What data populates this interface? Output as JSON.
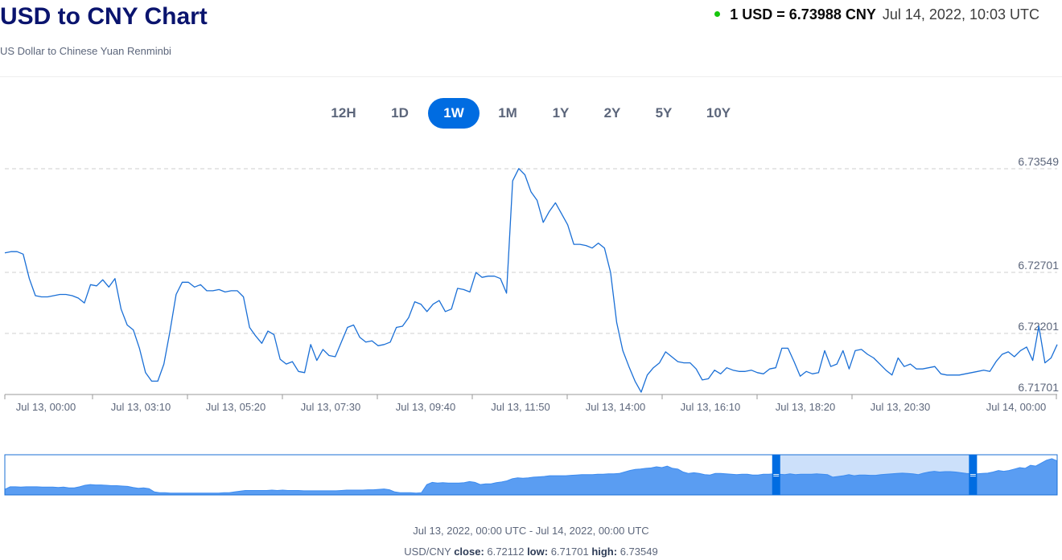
{
  "header": {
    "title": "USD to CNY Chart",
    "subtitle": "US Dollar to Chinese Yuan Renminbi",
    "rate_text": "1 USD = 6.73988 CNY",
    "rate_time": "Jul 14, 2022, 10:03 UTC",
    "status_color": "#16c60c"
  },
  "tabs": [
    {
      "label": "12H",
      "active": false
    },
    {
      "label": "1D",
      "active": false
    },
    {
      "label": "1W",
      "active": true
    },
    {
      "label": "1M",
      "active": false
    },
    {
      "label": "1Y",
      "active": false
    },
    {
      "label": "2Y",
      "active": false
    },
    {
      "label": "5Y",
      "active": false
    },
    {
      "label": "10Y",
      "active": false
    }
  ],
  "chart_data": {
    "type": "line",
    "title": "USD to CNY Chart",
    "line_color": "#1a6fd6",
    "ylim": [
      6.71701,
      6.73549
    ],
    "y_ticks": [
      "6.73549",
      "6.72701",
      "6.72201",
      "6.71701"
    ],
    "x_ticks": [
      "Jul 13, 00:00",
      "Jul 13, 03:10",
      "Jul 13, 05:20",
      "Jul 13, 07:30",
      "Jul 13, 09:40",
      "Jul 13, 11:50",
      "Jul 13, 14:00",
      "Jul 13, 16:10",
      "Jul 13, 18:20",
      "Jul 13, 20:30",
      "Jul 14, 00:00"
    ],
    "grid": true,
    "series": [
      {
        "values": [
          6.7286,
          6.7287,
          6.7287,
          6.7285,
          6.7265,
          6.7251,
          6.725,
          6.725,
          6.7251,
          6.7252,
          6.7252,
          6.7251,
          6.7249,
          6.7245,
          6.726,
          6.7259,
          6.7264,
          6.7258,
          6.7265,
          6.724,
          6.7227,
          6.7223,
          6.7208,
          6.7188,
          6.7181,
          6.7181,
          6.7195,
          6.7222,
          6.7252,
          6.7262,
          6.7262,
          6.7258,
          6.726,
          6.7255,
          6.7255,
          6.7256,
          6.7254,
          6.7255,
          6.7255,
          6.725,
          6.7225,
          6.7218,
          6.7212,
          6.7222,
          6.7219,
          6.7199,
          6.7195,
          6.7197,
          6.7189,
          6.7188,
          6.7211,
          6.7198,
          6.7207,
          6.7202,
          6.7201,
          6.7213,
          6.7225,
          6.7227,
          6.7217,
          6.7213,
          6.7214,
          6.721,
          6.7211,
          6.7213,
          6.7225,
          6.7226,
          6.7233,
          6.7246,
          6.7244,
          6.7238,
          6.7244,
          6.7247,
          6.7238,
          6.724,
          6.7257,
          6.7256,
          6.7254,
          6.727,
          6.7266,
          6.7267,
          6.7267,
          6.7265,
          6.7253,
          6.7345,
          6.7355,
          6.735,
          6.7336,
          6.7329,
          6.7311,
          6.732,
          6.7327,
          6.7318,
          6.7309,
          6.7293,
          6.7293,
          6.7292,
          6.729,
          6.7294,
          6.729,
          6.727,
          6.7229,
          6.7206,
          6.7193,
          6.7181,
          6.7172,
          6.7186,
          6.7192,
          6.7196,
          6.7205,
          6.7201,
          6.7197,
          6.7196,
          6.7196,
          6.7191,
          6.7182,
          6.7183,
          6.719,
          6.7187,
          6.7192,
          6.719,
          6.7189,
          6.7189,
          6.719,
          6.7188,
          6.7187,
          6.7191,
          6.7192,
          6.7208,
          6.7208,
          6.7197,
          6.7185,
          6.7189,
          6.7187,
          6.7188,
          6.7206,
          6.7193,
          6.7195,
          6.7206,
          6.7191,
          6.7206,
          6.7207,
          6.7203,
          6.72,
          6.7195,
          6.719,
          6.7186,
          6.72,
          6.7193,
          6.7195,
          6.7191,
          6.7191,
          6.7192,
          6.7193,
          6.7187,
          6.7186,
          6.7186,
          6.7186,
          6.7187,
          6.7188,
          6.7189,
          6.719,
          6.7189,
          6.7197,
          6.7203,
          6.7205,
          6.7201,
          6.7206,
          6.7209,
          6.7198,
          6.7226,
          6.7196,
          6.72,
          6.7211
        ]
      }
    ]
  },
  "navigator": {
    "series_color": "#3d8cf0",
    "selection_fill": "#cce0fa",
    "handle_color": "#006ce1",
    "handle_glyph": "=",
    "selected_range": [
      0.733,
      0.92
    ],
    "values": [
      0.15,
      0.22,
      0.22,
      0.21,
      0.22,
      0.22,
      0.22,
      0.21,
      0.21,
      0.21,
      0.2,
      0.21,
      0.19,
      0.19,
      0.22,
      0.26,
      0.28,
      0.27,
      0.27,
      0.26,
      0.25,
      0.25,
      0.24,
      0.23,
      0.2,
      0.18,
      0.19,
      0.17,
      0.08,
      0.06,
      0.06,
      0.05,
      0.05,
      0.05,
      0.05,
      0.05,
      0.05,
      0.05,
      0.05,
      0.05,
      0.05,
      0.06,
      0.06,
      0.08,
      0.1,
      0.12,
      0.12,
      0.12,
      0.12,
      0.12,
      0.13,
      0.12,
      0.13,
      0.12,
      0.12,
      0.12,
      0.11,
      0.11,
      0.11,
      0.11,
      0.11,
      0.11,
      0.11,
      0.12,
      0.13,
      0.13,
      0.13,
      0.13,
      0.14,
      0.14,
      0.15,
      0.16,
      0.14,
      0.08,
      0.06,
      0.06,
      0.06,
      0.05,
      0.06,
      0.28,
      0.34,
      0.32,
      0.33,
      0.32,
      0.32,
      0.32,
      0.33,
      0.36,
      0.34,
      0.28,
      0.3,
      0.3,
      0.33,
      0.35,
      0.38,
      0.44,
      0.46,
      0.45,
      0.46,
      0.48,
      0.49,
      0.5,
      0.52,
      0.52,
      0.52,
      0.52,
      0.53,
      0.54,
      0.55,
      0.55,
      0.55,
      0.56,
      0.56,
      0.57,
      0.57,
      0.58,
      0.62,
      0.66,
      0.69,
      0.7,
      0.72,
      0.73,
      0.76,
      0.74,
      0.78,
      0.72,
      0.7,
      0.62,
      0.58,
      0.6,
      0.58,
      0.55,
      0.54,
      0.58,
      0.58,
      0.57,
      0.56,
      0.55,
      0.56,
      0.56,
      0.54,
      0.54,
      0.56,
      0.56,
      0.57,
      0.56,
      0.55,
      0.57,
      0.55,
      0.56,
      0.56,
      0.56,
      0.57,
      0.56,
      0.55,
      0.48,
      0.5,
      0.52,
      0.55,
      0.52,
      0.54,
      0.54,
      0.53,
      0.53,
      0.55,
      0.56,
      0.57,
      0.58,
      0.59,
      0.58,
      0.57,
      0.55,
      0.59,
      0.62,
      0.64,
      0.62,
      0.63,
      0.63,
      0.62,
      0.6,
      0.58,
      0.57,
      0.57,
      0.58,
      0.59,
      0.62,
      0.66,
      0.64,
      0.66,
      0.7,
      0.74,
      0.72,
      0.8,
      0.78,
      0.86,
      0.94,
      0.98,
      0.92
    ]
  },
  "footer": {
    "range": "Jul 13, 2022, 00:00 UTC - Jul 14, 2022, 00:00 UTC",
    "pair": "USD/CNY",
    "close_label": "close:",
    "close_value": "6.72112",
    "low_label": "low:",
    "low_value": "6.71701",
    "high_label": "high:",
    "high_value": "6.73549"
  }
}
